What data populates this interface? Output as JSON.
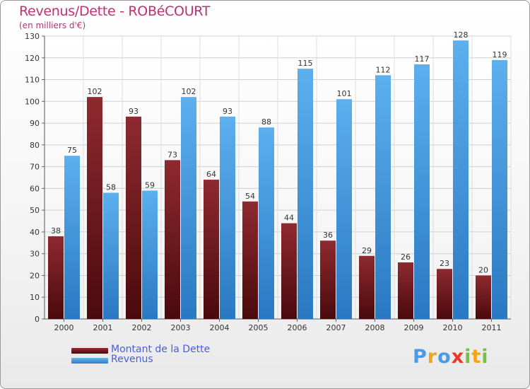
{
  "chart_data": {
    "type": "bar",
    "title": "Revenus/Dette - ROBéCOURT",
    "subtitle": "(en milliers d'€)",
    "categories": [
      "2000",
      "2001",
      "2002",
      "2003",
      "2004",
      "2005",
      "2006",
      "2007",
      "2008",
      "2009",
      "2010",
      "2011"
    ],
    "series": [
      {
        "name": "Montant de la Dette",
        "color": "#7a1e22",
        "values": [
          38,
          102,
          93,
          73,
          64,
          54,
          44,
          36,
          29,
          26,
          23,
          20
        ]
      },
      {
        "name": "Revenus",
        "color": "#4aa0e4",
        "values": [
          75,
          58,
          59,
          102,
          93,
          88,
          115,
          101,
          112,
          117,
          128,
          119
        ]
      }
    ],
    "ylim": [
      0,
      130
    ],
    "yticks": [
      0,
      10,
      20,
      30,
      40,
      50,
      60,
      70,
      80,
      90,
      100,
      110,
      120,
      130
    ],
    "grid": true,
    "legend": "bottom-left"
  },
  "logo": {
    "letters": [
      "P",
      "r",
      "o",
      "x",
      "i",
      "t",
      "i"
    ],
    "colors": [
      "#4a9be6",
      "#f2a51c",
      "#4a9be6",
      "#e8392c",
      "#78c043",
      "#f2a51c",
      "#78c043"
    ]
  }
}
